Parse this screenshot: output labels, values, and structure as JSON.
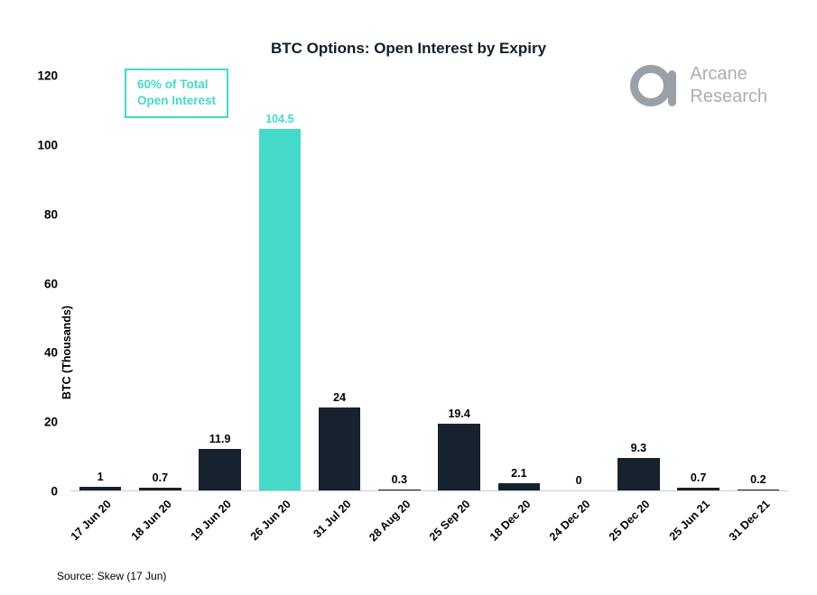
{
  "chart_data": {
    "type": "bar",
    "title": "BTC Options: Open Interest by Expiry",
    "ylabel": "BTC  (Thousands)",
    "categories": [
      "17 Jun 20",
      "18 Jun 20",
      "19 Jun 20",
      "26 Jun 20",
      "31 Jul 20",
      "28 Aug 20",
      "25 Sep 20",
      "18 Dec 20",
      "24 Dec 20",
      "25 Dec 20",
      "25 Jun 21",
      "31 Dec 21"
    ],
    "values": [
      1,
      0.7,
      11.9,
      104.5,
      24,
      0.3,
      19.4,
      2.1,
      0,
      9.3,
      0.7,
      0.2
    ],
    "ylim": [
      0,
      120
    ],
    "ytick_step": 20,
    "grid": false,
    "legend": "none",
    "highlight_index": 3,
    "bar_color": "#16222e",
    "highlight_color": "#45d9c9"
  },
  "annotation": {
    "line1": "60% of Total",
    "line2": "Open Interest",
    "color": "#45d9c9"
  },
  "logo": {
    "line1": "Arcane",
    "line2": "Research"
  },
  "source": "Source: Skew (17 Jun)"
}
